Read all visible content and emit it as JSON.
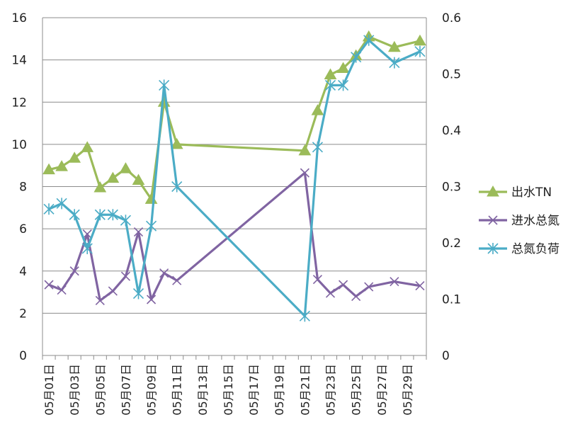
{
  "chart_data": {
    "type": "line",
    "title": "",
    "xlabel": "",
    "ylabel": "",
    "y2label": "",
    "grid": true,
    "legend_position": "right",
    "ylim": [
      0,
      16
    ],
    "y_ticks": [
      0,
      2,
      4,
      6,
      8,
      10,
      12,
      14,
      16
    ],
    "y2lim": [
      0,
      0.6
    ],
    "y2_ticks": [
      "0",
      "0.1",
      "0.2",
      "0.3",
      "0.4",
      "0.5",
      "0.6"
    ],
    "x_tick_labels": [
      "05月01日",
      "05月03日",
      "05月05日",
      "05月07日",
      "05月09日",
      "05月11日",
      "05月13日",
      "05月15日",
      "05月17日",
      "05月19日",
      "05月21日",
      "05月23日",
      "05月25日",
      "05月27日",
      "05月29日"
    ],
    "x_days": [
      1,
      30
    ],
    "series": [
      {
        "name": "出水TN",
        "axis": "left",
        "color": "#9bbb59",
        "marker": "triangle",
        "points": [
          [
            1,
            8.8
          ],
          [
            2,
            8.95
          ],
          [
            3,
            9.35
          ],
          [
            4,
            9.85
          ],
          [
            5,
            7.95
          ],
          [
            6,
            8.4
          ],
          [
            7,
            8.85
          ],
          [
            8,
            8.3
          ],
          [
            9,
            7.4
          ],
          [
            10,
            12.0
          ],
          [
            11,
            10.0
          ],
          [
            21,
            9.7
          ],
          [
            22,
            11.6
          ],
          [
            23,
            13.3
          ],
          [
            24,
            13.6
          ],
          [
            25,
            14.2
          ],
          [
            26,
            15.1
          ],
          [
            28,
            14.6
          ],
          [
            30,
            14.9
          ]
        ]
      },
      {
        "name": "进水总氮",
        "axis": "left",
        "color": "#8064a2",
        "marker": "x",
        "points": [
          [
            1,
            3.35
          ],
          [
            2,
            3.1
          ],
          [
            3,
            4.0
          ],
          [
            4,
            5.75
          ],
          [
            5,
            2.6
          ],
          [
            6,
            3.05
          ],
          [
            7,
            3.75
          ],
          [
            8,
            5.85
          ],
          [
            9,
            2.65
          ],
          [
            10,
            3.9
          ],
          [
            11,
            3.55
          ],
          [
            21,
            8.65
          ],
          [
            22,
            3.6
          ],
          [
            23,
            2.95
          ],
          [
            24,
            3.35
          ],
          [
            25,
            2.8
          ],
          [
            26,
            3.25
          ],
          [
            28,
            3.5
          ],
          [
            30,
            3.3
          ]
        ]
      },
      {
        "name": "总氮负荷",
        "axis": "right",
        "color": "#4bacc6",
        "marker": "star",
        "points": [
          [
            1,
            0.26
          ],
          [
            2,
            0.27
          ],
          [
            3,
            0.25
          ],
          [
            4,
            0.19
          ],
          [
            5,
            0.25
          ],
          [
            6,
            0.25
          ],
          [
            7,
            0.24
          ],
          [
            8,
            0.11
          ],
          [
            9,
            0.23
          ],
          [
            10,
            0.48
          ],
          [
            11,
            0.3
          ],
          [
            21,
            0.07
          ],
          [
            22,
            0.37
          ],
          [
            23,
            0.48
          ],
          [
            24,
            0.48
          ],
          [
            25,
            0.53
          ],
          [
            26,
            0.56
          ],
          [
            28,
            0.52
          ],
          [
            30,
            0.54
          ]
        ]
      }
    ]
  }
}
